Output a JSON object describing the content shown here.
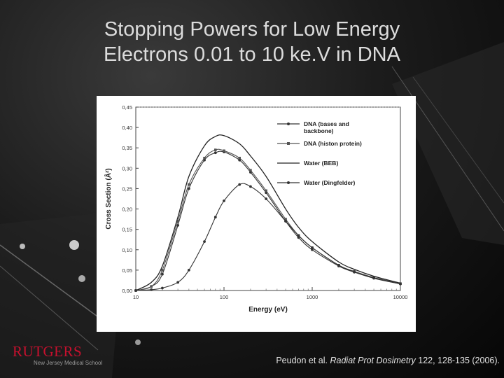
{
  "slide": {
    "title_line1": "Stopping Powers for Low Energy",
    "title_line2": "Electrons 0.01 to 10 ke.V in DNA",
    "logo_main": "RUTGERS",
    "logo_sub": "New Jersey Medical School",
    "citation": {
      "authors": "Peudon et al. ",
      "journal": "Radiat Prot Dosimetry",
      "details": " 122, 128-135 (2006)."
    },
    "accent_color": "#c8102e"
  },
  "chart_data": {
    "type": "line",
    "title": "",
    "xlabel": "Energy (eV)",
    "ylabel": "Cross Section (Å²)",
    "xscale": "log",
    "xlim": [
      10,
      10000
    ],
    "ylim": [
      0,
      0.45
    ],
    "xticks": [
      10,
      100,
      1000,
      10000
    ],
    "xtick_labels": [
      "10",
      "100",
      "1000",
      "10000"
    ],
    "yticks": [
      0,
      0.05,
      0.1,
      0.15,
      0.2,
      0.25,
      0.3,
      0.35,
      0.4,
      0.45
    ],
    "ytick_labels": [
      "0,00",
      "0,05",
      "0,10",
      "0,15",
      "0,20",
      "0,25",
      "0,30",
      "0,35",
      "0,40",
      "0,45"
    ],
    "legend_position": "top-right",
    "x": [
      10,
      15,
      20,
      30,
      40,
      60,
      80,
      100,
      150,
      200,
      300,
      500,
      700,
      1000,
      2000,
      3000,
      5000,
      10000
    ],
    "series": [
      {
        "name": "DNA (bases and backbone)",
        "marker": "dot",
        "color": "#333333",
        "values": [
          0.0,
          0.01,
          0.04,
          0.16,
          0.25,
          0.32,
          0.338,
          0.34,
          0.32,
          0.29,
          0.24,
          0.17,
          0.13,
          0.1,
          0.06,
          0.045,
          0.03,
          0.016
        ]
      },
      {
        "name": "DNA (histon protein)",
        "marker": "square",
        "color": "#555555",
        "values": [
          0.0,
          0.01,
          0.05,
          0.17,
          0.26,
          0.325,
          0.345,
          0.343,
          0.325,
          0.295,
          0.245,
          0.175,
          0.135,
          0.105,
          0.062,
          0.047,
          0.032,
          0.017
        ]
      },
      {
        "name": "Water (BEB)",
        "marker": "none",
        "color": "#222222",
        "values": [
          0.0,
          0.02,
          0.06,
          0.18,
          0.28,
          0.355,
          0.378,
          0.38,
          0.36,
          0.33,
          0.28,
          0.2,
          0.155,
          0.12,
          0.07,
          0.052,
          0.035,
          0.018
        ]
      },
      {
        "name": "Water (Dingfelder)",
        "marker": "dot",
        "color": "#333333",
        "values": [
          0.0,
          0.002,
          0.006,
          0.02,
          0.05,
          0.12,
          0.18,
          0.22,
          0.26,
          0.255,
          0.225,
          0.17,
          0.135,
          0.105,
          0.062,
          0.046,
          0.031,
          0.016
        ]
      }
    ]
  }
}
